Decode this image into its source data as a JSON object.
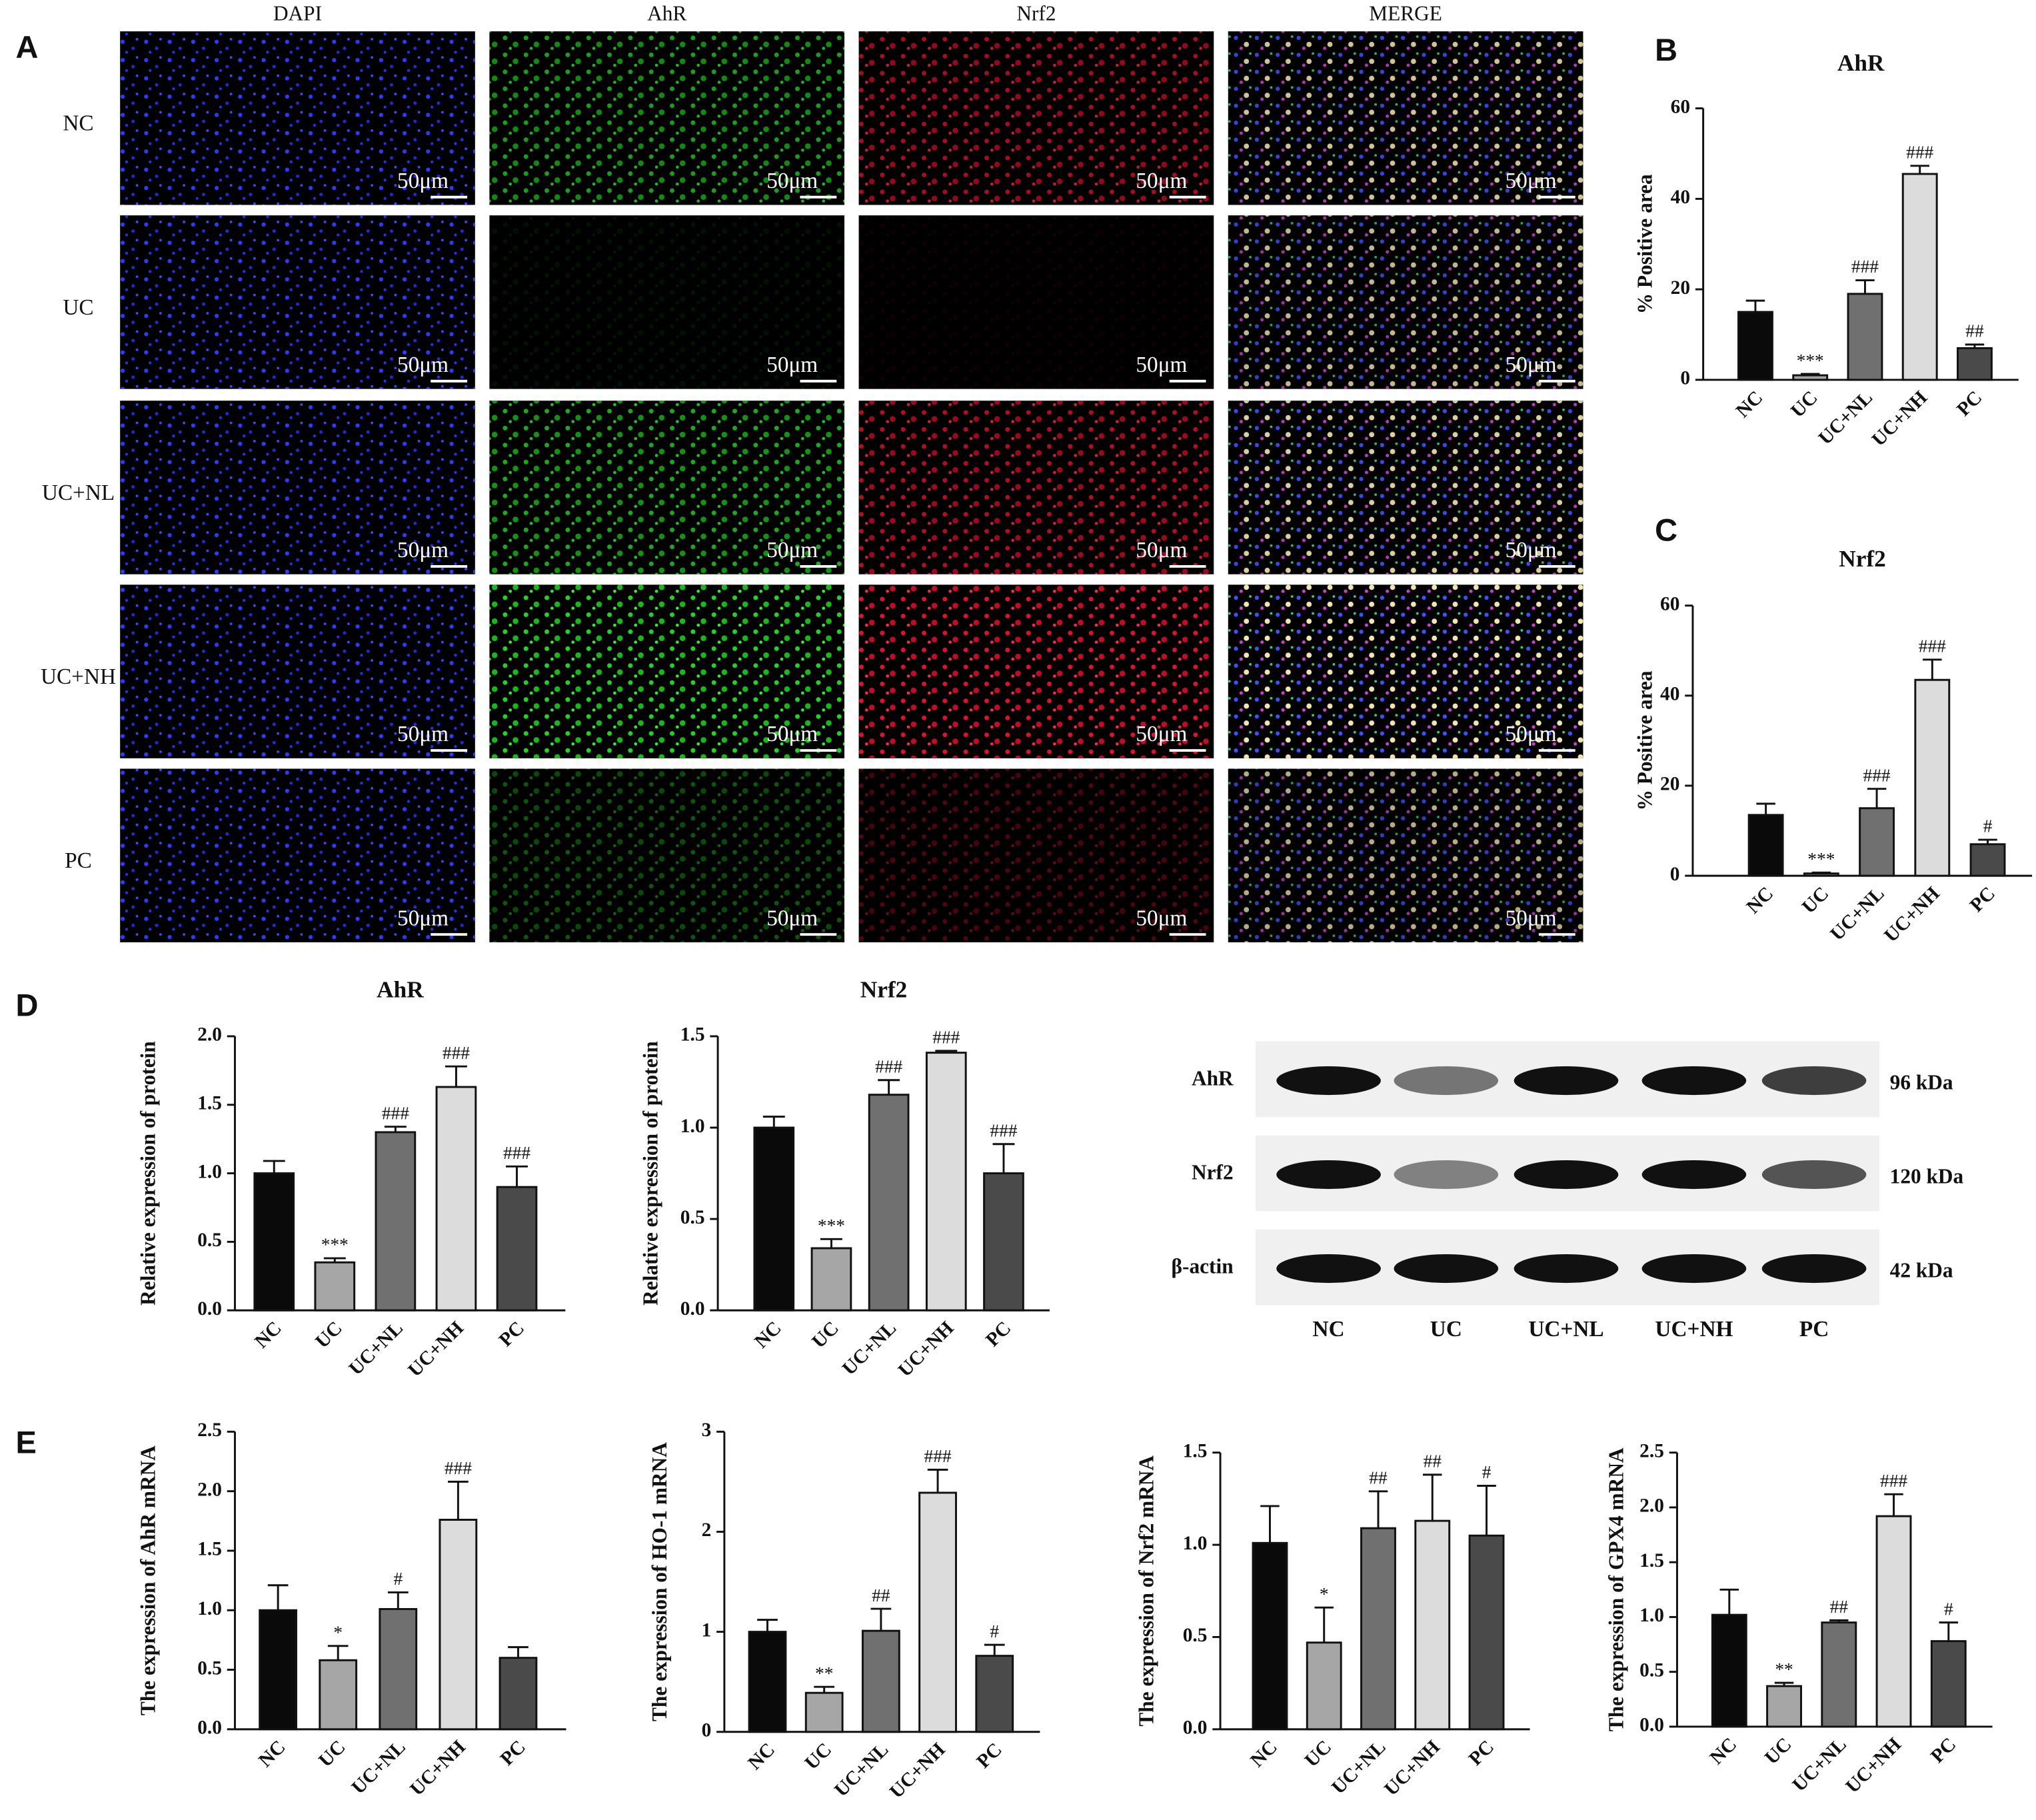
{
  "panel_labels": [
    "A",
    "B",
    "C",
    "D",
    "E"
  ],
  "microscopy": {
    "columns": [
      "DAPI",
      "AhR",
      "Nrf2",
      "MERGE"
    ],
    "rows": [
      "NC",
      "UC",
      "UC+NL",
      "UC+NH",
      "PC"
    ],
    "scale_bar": "50μm"
  },
  "western_blot": {
    "proteins": [
      "AhR",
      "Nrf2",
      "β-actin"
    ],
    "sizes": [
      "96 kDa",
      "120 kDa",
      "42 kDa"
    ],
    "lanes": [
      "NC",
      "UC",
      "UC+NL",
      "UC+NH",
      "PC"
    ]
  },
  "chart_data": [
    {
      "type": "bar",
      "title": "AhR",
      "y_label": "% Positive area",
      "categories": [
        "NC",
        "UC",
        "UC+NL",
        "UC+NH",
        "PC"
      ],
      "values": [
        15,
        1,
        19,
        45.5,
        7
      ],
      "errors": [
        2.5,
        0.3,
        3,
        1.8,
        0.8
      ],
      "annotations": [
        null,
        "***",
        "###",
        "###",
        "##"
      ],
      "colors": [
        "#0a0a0a",
        "#a6a6a6",
        "#707070",
        "#dcdcdc",
        "#4a4a4a"
      ],
      "ylim": [
        0,
        60
      ],
      "yticks": [
        0,
        20,
        40,
        60
      ]
    },
    {
      "type": "bar",
      "title": "Nrf2",
      "y_label": "% Positive area",
      "categories": [
        "NC",
        "UC",
        "UC+NL",
        "UC+NH",
        "PC"
      ],
      "values": [
        13.5,
        0.5,
        15,
        43.5,
        7
      ],
      "errors": [
        2.5,
        0.2,
        4.3,
        4.5,
        1
      ],
      "annotations": [
        null,
        "***",
        "###",
        "###",
        "#"
      ],
      "colors": [
        "#0a0a0a",
        "#a6a6a6",
        "#707070",
        "#dcdcdc",
        "#4a4a4a"
      ],
      "ylim": [
        0,
        60
      ],
      "yticks": [
        0,
        20,
        40,
        60
      ]
    },
    {
      "type": "bar",
      "title": "AhR",
      "y_label": "Relative expression of protein",
      "categories": [
        "NC",
        "UC",
        "UC+NL",
        "UC+NH",
        "PC"
      ],
      "values": [
        1.0,
        0.35,
        1.3,
        1.63,
        0.9
      ],
      "errors": [
        0.09,
        0.03,
        0.04,
        0.15,
        0.15
      ],
      "annotations": [
        null,
        "***",
        "###",
        "###",
        "###"
      ],
      "colors": [
        "#0a0a0a",
        "#a6a6a6",
        "#707070",
        "#dcdcdc",
        "#4a4a4a"
      ],
      "ylim": [
        0,
        2
      ],
      "yticks": [
        {
          "value": 0,
          "label": "0.0"
        },
        {
          "value": 0.5,
          "label": "0.5"
        },
        {
          "value": 1,
          "label": "1.0"
        },
        {
          "value": 1.5,
          "label": "1.5"
        },
        {
          "value": 2,
          "label": "2.0"
        }
      ]
    },
    {
      "type": "bar",
      "title": "Nrf2",
      "y_label": "Relative expression of protein",
      "categories": [
        "NC",
        "UC",
        "UC+NL",
        "UC+NH",
        "PC"
      ],
      "values": [
        1.0,
        0.34,
        1.18,
        1.41,
        0.75
      ],
      "errors": [
        0.06,
        0.05,
        0.08,
        0.01,
        0.16
      ],
      "annotations": [
        null,
        "***",
        "###",
        "###",
        "###"
      ],
      "colors": [
        "#0a0a0a",
        "#a6a6a6",
        "#707070",
        "#dcdcdc",
        "#4a4a4a"
      ],
      "ylim": [
        0,
        1.5
      ],
      "yticks": [
        {
          "value": 0,
          "label": "0.0"
        },
        {
          "value": 0.5,
          "label": "0.5"
        },
        {
          "value": 1,
          "label": "1.0"
        },
        {
          "value": 1.5,
          "label": "1.5"
        }
      ]
    },
    {
      "type": "bar",
      "y_label": "The expression of AhR mRNA",
      "categories": [
        "NC",
        "UC",
        "UC+NL",
        "UC+NH",
        "PC"
      ],
      "values": [
        1.0,
        0.58,
        1.01,
        1.76,
        0.6
      ],
      "errors": [
        0.21,
        0.12,
        0.14,
        0.32,
        0.09
      ],
      "annotations": [
        null,
        "*",
        "#",
        "###",
        null
      ],
      "colors": [
        "#0a0a0a",
        "#a6a6a6",
        "#707070",
        "#dcdcdc",
        "#4a4a4a"
      ],
      "ylim": [
        0,
        2.5
      ],
      "yticks": [
        {
          "value": 0,
          "label": "0.0"
        },
        {
          "value": 0.5,
          "label": "0.5"
        },
        {
          "value": 1,
          "label": "1.0"
        },
        {
          "value": 1.5,
          "label": "1.5"
        },
        {
          "value": 2,
          "label": "2.0"
        },
        {
          "value": 2.5,
          "label": "2.5"
        }
      ]
    },
    {
      "type": "bar",
      "y_label": "The expression of HO-1 mRNA",
      "categories": [
        "NC",
        "UC",
        "UC+NL",
        "UC+NH",
        "PC"
      ],
      "values": [
        1.0,
        0.39,
        1.01,
        2.39,
        0.76
      ],
      "errors": [
        0.12,
        0.06,
        0.22,
        0.23,
        0.11
      ],
      "annotations": [
        null,
        "**",
        "##",
        "###",
        "#"
      ],
      "colors": [
        "#0a0a0a",
        "#a6a6a6",
        "#707070",
        "#dcdcdc",
        "#4a4a4a"
      ],
      "ylim": [
        0,
        3
      ],
      "yticks": [
        0,
        1,
        2,
        3
      ]
    },
    {
      "type": "bar",
      "y_label": "The expression of Nrf2 mRNA",
      "categories": [
        "NC",
        "UC",
        "UC+NL",
        "UC+NH",
        "PC"
      ],
      "values": [
        1.01,
        0.47,
        1.09,
        1.13,
        1.05
      ],
      "errors": [
        0.2,
        0.19,
        0.2,
        0.25,
        0.27
      ],
      "annotations": [
        null,
        "*",
        "##",
        "##",
        "#"
      ],
      "colors": [
        "#0a0a0a",
        "#a6a6a6",
        "#707070",
        "#dcdcdc",
        "#4a4a4a"
      ],
      "ylim": [
        0,
        1.5
      ],
      "yticks": [
        {
          "value": 0,
          "label": "0.0"
        },
        {
          "value": 0.5,
          "label": "0.5"
        },
        {
          "value": 1,
          "label": "1.0"
        },
        {
          "value": 1.5,
          "label": "1.5"
        }
      ]
    },
    {
      "type": "bar",
      "y_label": "The expression of GPX4 mRNA",
      "categories": [
        "NC",
        "UC",
        "UC+NL",
        "UC+NH",
        "PC"
      ],
      "values": [
        1.02,
        0.37,
        0.95,
        1.92,
        0.78
      ],
      "errors": [
        0.23,
        0.03,
        0.02,
        0.2,
        0.17
      ],
      "annotations": [
        null,
        "**",
        "##",
        "###",
        "#"
      ],
      "colors": [
        "#0a0a0a",
        "#a6a6a6",
        "#707070",
        "#dcdcdc",
        "#4a4a4a"
      ],
      "ylim": [
        0,
        2.5
      ],
      "yticks": [
        {
          "value": 0,
          "label": "0.0"
        },
        {
          "value": 0.5,
          "label": "0.5"
        },
        {
          "value": 1,
          "label": "1.0"
        },
        {
          "value": 1.5,
          "label": "1.5"
        },
        {
          "value": 2,
          "label": "2.0"
        },
        {
          "value": 2.5,
          "label": "2.5"
        }
      ]
    }
  ]
}
